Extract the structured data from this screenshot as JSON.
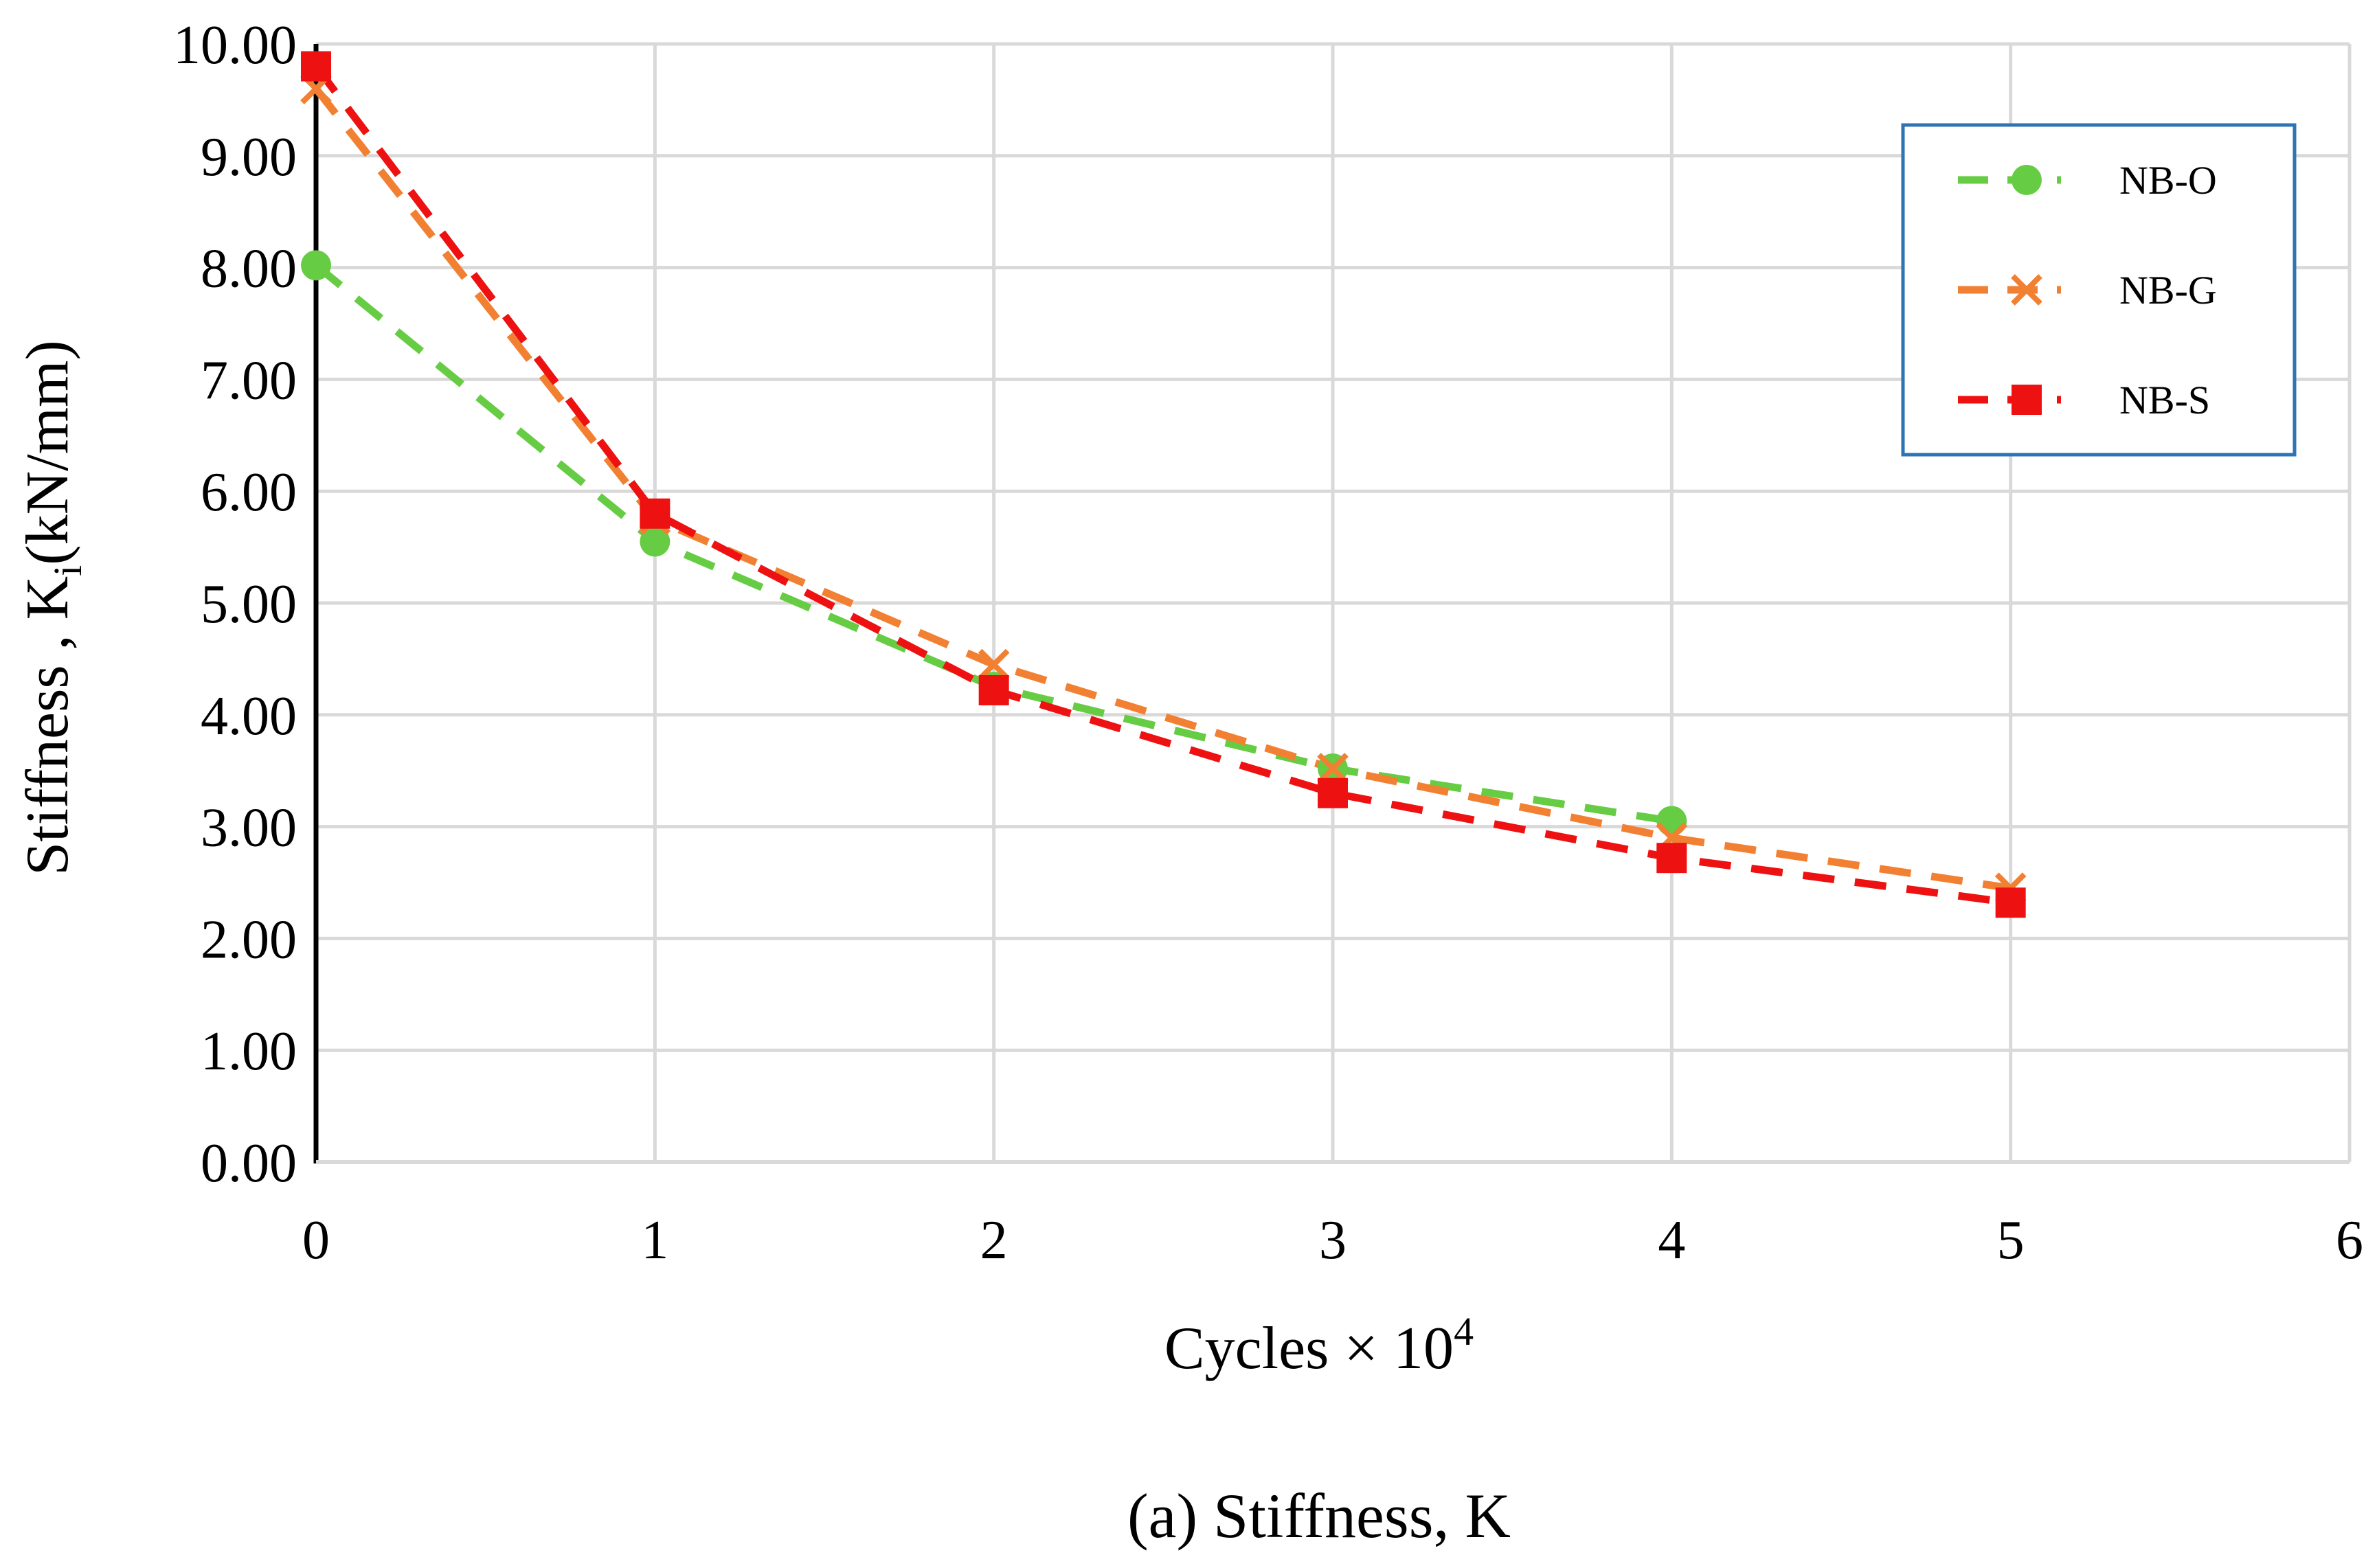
{
  "chart_data": {
    "type": "line",
    "title": "",
    "caption": "(a) Stiffness, K",
    "xlabel_main": "Cycles × 10",
    "xlabel_sup": "4",
    "ylabel_main": "Stiffness , K",
    "ylabel_sub": "i",
    "ylabel_tail": "(kN/mm)",
    "xlim": [
      0,
      6
    ],
    "ylim": [
      0,
      10
    ],
    "x_ticks": [
      "0",
      "1",
      "2",
      "3",
      "4",
      "5",
      "6"
    ],
    "y_ticks": [
      "0.00",
      "1.00",
      "2.00",
      "3.00",
      "4.00",
      "5.00",
      "6.00",
      "7.00",
      "8.00",
      "9.00",
      "10.00"
    ],
    "grid": true,
    "legend_position": "top-right",
    "series": [
      {
        "name": "NB-O",
        "color": "#66cc44",
        "marker": "circle",
        "x": [
          0,
          1,
          2,
          3,
          4
        ],
        "values": [
          8.02,
          5.55,
          4.25,
          3.52,
          3.05
        ]
      },
      {
        "name": "NB-G",
        "color": "#f28032",
        "marker": "x",
        "x": [
          0,
          1,
          2,
          3,
          4,
          5
        ],
        "values": [
          9.6,
          5.75,
          4.45,
          3.52,
          2.9,
          2.45
        ]
      },
      {
        "name": "NB-S",
        "color": "#ee1111",
        "marker": "square",
        "x": [
          0,
          1,
          2,
          3,
          4,
          5
        ],
        "values": [
          9.8,
          5.8,
          4.22,
          3.3,
          2.72,
          2.32
        ]
      }
    ]
  }
}
